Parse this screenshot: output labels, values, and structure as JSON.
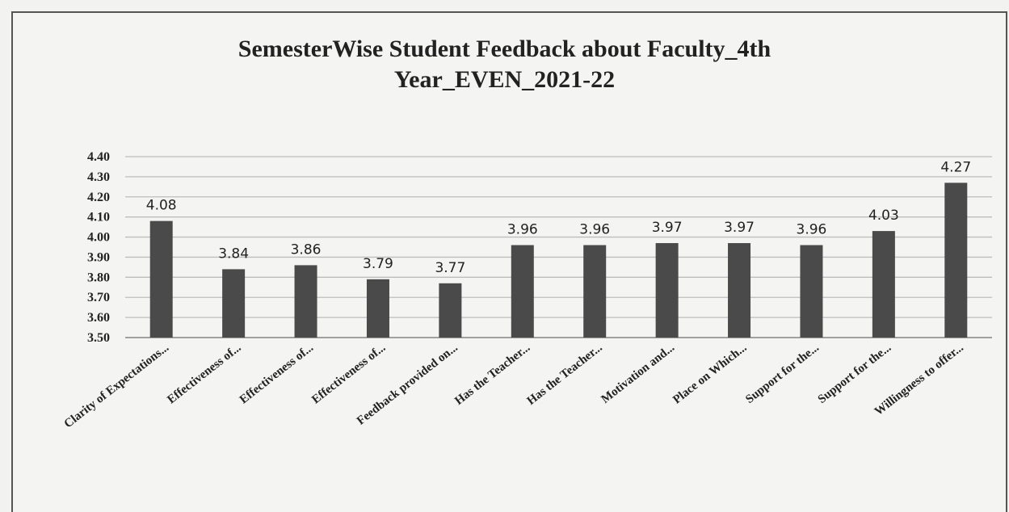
{
  "chart_data": {
    "type": "bar",
    "title": "SemesterWise Student Feedback about Faculty_4th Year_EVEN_2021-22",
    "title_lines": [
      "SemesterWise Student Feedback about Faculty_4th",
      "Year_EVEN_2021-22"
    ],
    "categories": [
      "Clarity of Expectations...",
      "Effectiveness of...",
      "Effectiveness of...",
      "Effectiveness of...",
      "Feedback provided on...",
      "Has the Teacher...",
      "Has the Teacher...",
      "Motivation and...",
      "Place on Which...",
      "Support for the...",
      "Support for the...",
      "Willingness to offer..."
    ],
    "values": [
      4.08,
      3.84,
      3.86,
      3.79,
      3.77,
      3.96,
      3.96,
      3.97,
      3.97,
      3.96,
      4.03,
      4.27
    ],
    "value_labels": [
      "4.08",
      "3.84",
      "3.86",
      "3.79",
      "3.77",
      "3.96",
      "3.96",
      "3.97",
      "3.97",
      "3.96",
      "4.03",
      "4.27"
    ],
    "ylim": [
      3.5,
      4.4
    ],
    "yticks": [
      "4.40",
      "4.30",
      "4.20",
      "4.10",
      "4.00",
      "3.90",
      "3.80",
      "3.70",
      "3.60",
      "3.50"
    ],
    "xlabel": "",
    "ylabel": "",
    "grid": true,
    "legend": "none",
    "bar_color": "#4a4a4a",
    "grid_color": "#bdbdbd"
  }
}
